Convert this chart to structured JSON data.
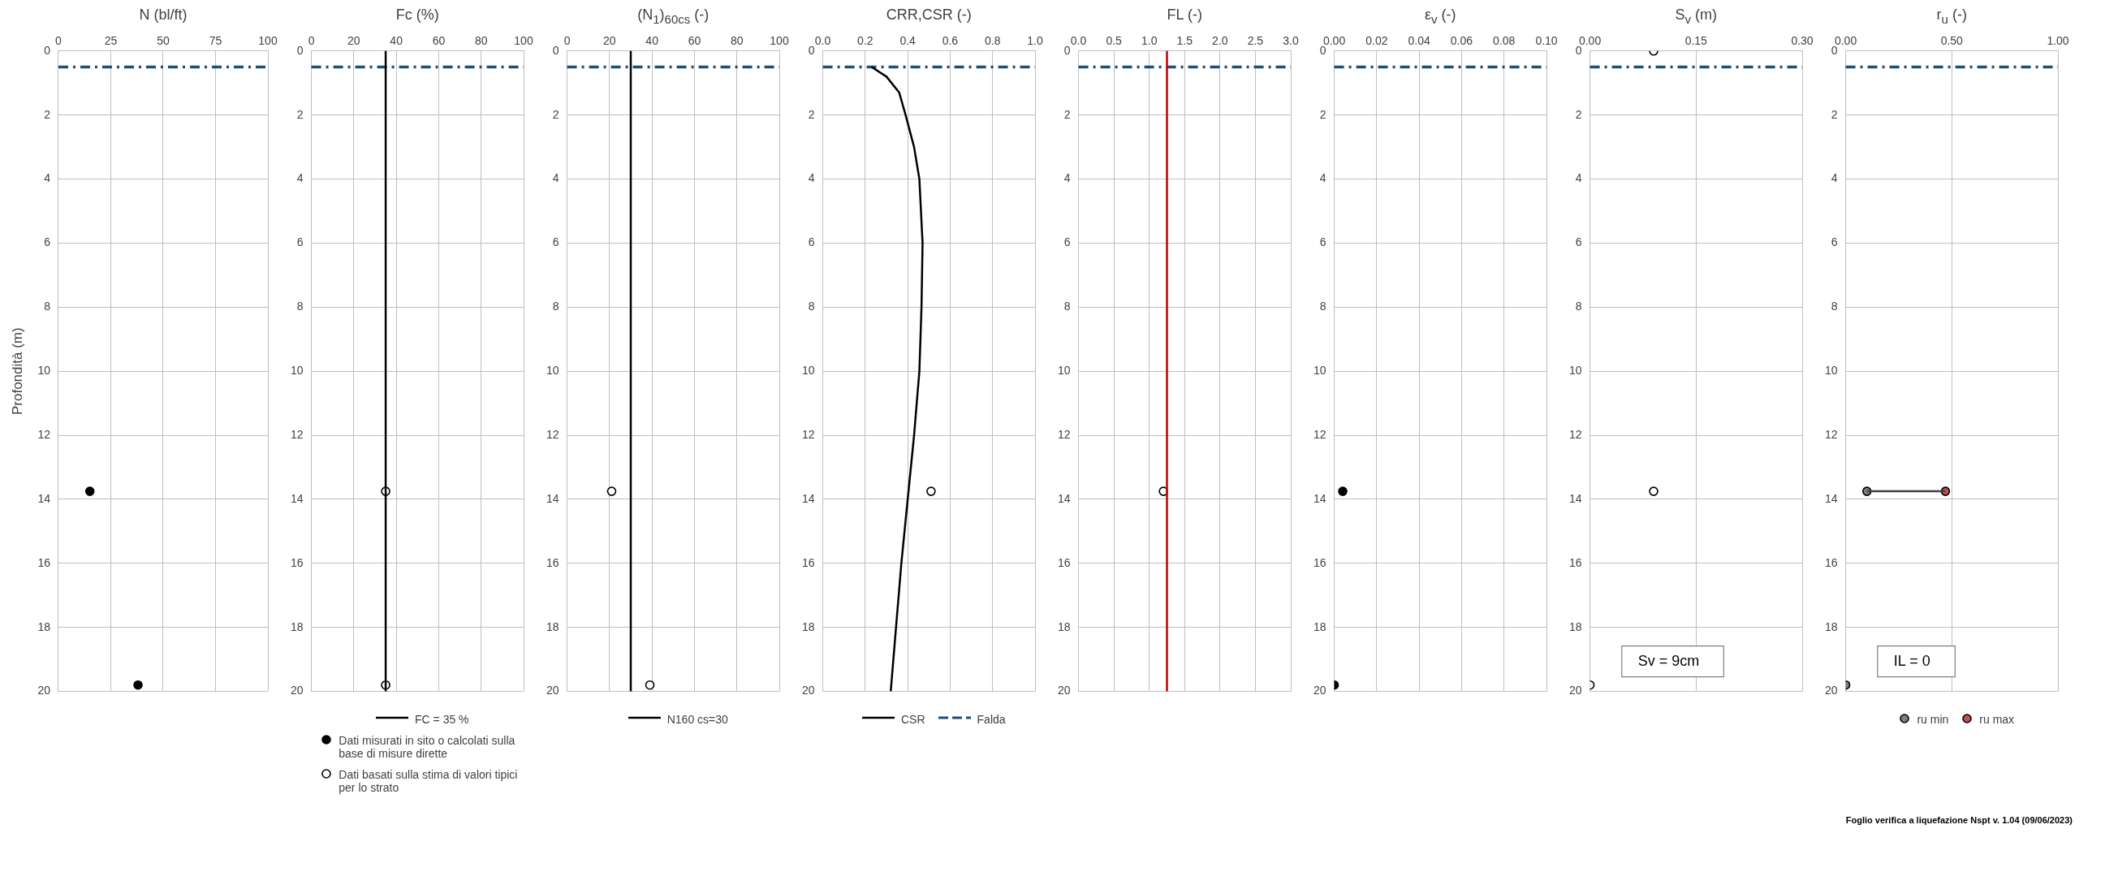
{
  "chart_data": [
    {
      "type": "scatter",
      "xlabel": "N (bl/ft)",
      "ylabel": "Profondità (m)",
      "xlim": [
        0,
        100
      ],
      "xticks": [
        0,
        25,
        50,
        75,
        100
      ],
      "ylim": [
        20,
        0
      ],
      "yticks": [
        0,
        2,
        4,
        6,
        8,
        10,
        12,
        14,
        16,
        18,
        20
      ],
      "grid": true,
      "marker": "circle",
      "series": [
        {
          "color": "#000000",
          "x": [
            15,
            38
          ],
          "values": [
            13.75,
            19.8
          ]
        }
      ],
      "ref_lines": [
        {
          "axis": "y",
          "value": 0.5,
          "color": "#1f4e79",
          "line_style": "dashed"
        }
      ]
    },
    {
      "type": "scatter",
      "xlabel": "Fc (%)",
      "xlim": [
        0,
        100
      ],
      "xticks": [
        0,
        20,
        40,
        60,
        80,
        100
      ],
      "ylim": [
        20,
        0
      ],
      "yticks": [
        0,
        2,
        4,
        6,
        8,
        10,
        12,
        14,
        16,
        18,
        20
      ],
      "grid": true,
      "marker": "circle",
      "legend": "bottom",
      "series": [
        {
          "type": "line",
          "name": "FC = 35 %",
          "color": "#000000",
          "marker": "none",
          "x": [
            35,
            35
          ],
          "values": [
            0,
            20
          ]
        },
        {
          "name": "Dati misurati in sito o calcolati sulla base di misure dirette",
          "color": "#000000"
        },
        {
          "name": "Dati basati sulla stima di valori tipici per lo strato",
          "color": "#ffffff",
          "x": [
            35,
            35
          ],
          "values": [
            13.75,
            19.8
          ]
        }
      ],
      "ref_lines": [
        {
          "axis": "y",
          "value": 0.5,
          "color": "#1f4e79",
          "line_style": "dashed"
        }
      ]
    },
    {
      "type": "scatter",
      "xlabel": "(N$_{1}$)$_{60cs}$ (-)",
      "xlim": [
        0,
        100
      ],
      "xticks": [
        0,
        20,
        40,
        60,
        80,
        100
      ],
      "ylim": [
        20,
        0
      ],
      "yticks": [
        0,
        2,
        4,
        6,
        8,
        10,
        12,
        14,
        16,
        18,
        20
      ],
      "grid": true,
      "marker": "circle",
      "legend": "bottom",
      "series": [
        {
          "type": "line",
          "name": "N160 cs=30",
          "color": "#000000",
          "marker": "none",
          "x": [
            30,
            30
          ],
          "values": [
            0,
            20
          ]
        },
        {
          "color": "#ffffff",
          "x": [
            21,
            39
          ],
          "values": [
            13.75,
            19.8
          ]
        }
      ],
      "ref_lines": [
        {
          "axis": "y",
          "value": 0.5,
          "color": "#1f4e79",
          "line_style": "dashed"
        }
      ]
    },
    {
      "type": "scatter",
      "xlabel": "CRR,CSR (-)",
      "xlim": [
        0,
        1
      ],
      "xticks": [
        {
          "value": 0,
          "label": "0.0"
        },
        0.2,
        0.4,
        0.6,
        0.8,
        {
          "value": 1,
          "label": "1.0"
        }
      ],
      "ylim": [
        20,
        0
      ],
      "yticks": [
        0,
        2,
        4,
        6,
        8,
        10,
        12,
        14,
        16,
        18,
        20
      ],
      "grid": true,
      "marker": "circle",
      "legend": "bottom",
      "series": [
        {
          "type": "line",
          "name": "CSR",
          "color": "#000000",
          "marker": "none",
          "x": [
            0.23,
            0.3,
            0.36,
            0.39,
            0.43,
            0.455,
            0.47,
            0.465,
            0.455,
            0.43,
            0.4,
            0.37,
            0.345,
            0.32
          ],
          "values": [
            0.5,
            0.8,
            1.3,
            2,
            3,
            4,
            6,
            8,
            10,
            12,
            14,
            16,
            18,
            20
          ]
        },
        {
          "color": "#ffffff",
          "x": [
            0.51
          ],
          "values": [
            13.75
          ]
        }
      ],
      "ref_lines": [
        {
          "axis": "y",
          "value": 0.5,
          "color": "#1f4e79",
          "line_style": "dashed",
          "label": "Falda"
        }
      ]
    },
    {
      "type": "scatter",
      "xlabel": "FL (-)",
      "xlim": [
        0,
        3
      ],
      "xticks": [
        {
          "value": 0,
          "label": "0.0"
        },
        0.5,
        {
          "value": 1,
          "label": "1.0"
        },
        1.5,
        {
          "value": 2,
          "label": "2.0"
        },
        2.5,
        {
          "value": 3,
          "label": "3.0"
        }
      ],
      "ylim": [
        20,
        0
      ],
      "yticks": [
        0,
        2,
        4,
        6,
        8,
        10,
        12,
        14,
        16,
        18,
        20
      ],
      "grid": true,
      "marker": "circle",
      "series": [
        {
          "type": "line",
          "color": "#c00000",
          "marker": "none",
          "x": [
            1.25,
            1.25
          ],
          "values": [
            0,
            20
          ]
        },
        {
          "color": "#ffffff",
          "x": [
            1.2
          ],
          "values": [
            13.75
          ]
        }
      ],
      "ref_lines": [
        {
          "axis": "y",
          "value": 0.5,
          "color": "#1f4e79",
          "line_style": "dashed"
        }
      ]
    },
    {
      "type": "scatter",
      "xlabel": "ε$_{v}$ (-)",
      "xlim": [
        0,
        0.1
      ],
      "xticks": [
        {
          "value": 0,
          "label": "0.00"
        },
        {
          "value": 0.02,
          "label": "0.02"
        },
        {
          "value": 0.04,
          "label": "0.04"
        },
        {
          "value": 0.06,
          "label": "0.06"
        },
        {
          "value": 0.08,
          "label": "0.08"
        },
        {
          "value": 0.1,
          "label": "0.10"
        }
      ],
      "ylim": [
        20,
        0
      ],
      "yticks": [
        0,
        2,
        4,
        6,
        8,
        10,
        12,
        14,
        16,
        18,
        20
      ],
      "grid": true,
      "marker": "circle",
      "series": [
        {
          "color": "#000000",
          "x": [
            0.004,
            0
          ],
          "values": [
            13.75,
            19.8
          ]
        }
      ],
      "ref_lines": [
        {
          "axis": "y",
          "value": 0.5,
          "color": "#1f4e79",
          "line_style": "dashed"
        }
      ]
    },
    {
      "type": "scatter",
      "xlabel": "S$_{v}$ (m)",
      "xlim": [
        0,
        0.3
      ],
      "xticks": [
        {
          "value": 0,
          "label": "0.00"
        },
        0.15,
        {
          "value": 0.3,
          "label": "0.30"
        }
      ],
      "ylim": [
        20,
        0
      ],
      "yticks": [
        0,
        2,
        4,
        6,
        8,
        10,
        12,
        14,
        16,
        18,
        20
      ],
      "grid": true,
      "marker": "circle",
      "series": [
        {
          "color": "#ffffff",
          "x": [
            0.09,
            0.09,
            0
          ],
          "values": [
            0,
            13.75,
            19.8
          ]
        }
      ],
      "ref_lines": [
        {
          "axis": "y",
          "value": 0.5,
          "color": "#1f4e79",
          "line_style": "dashed"
        }
      ],
      "annotations": [
        "Sv = 9cm"
      ]
    },
    {
      "type": "scatter",
      "xlabel": "r$_{u}$ (-)",
      "xlim": [
        0,
        1
      ],
      "xticks": [
        {
          "value": 0,
          "label": "0.00"
        },
        {
          "value": 0.5,
          "label": "0.50"
        },
        {
          "value": 1,
          "label": "1.00"
        }
      ],
      "ylim": [
        20,
        0
      ],
      "yticks": [
        0,
        2,
        4,
        6,
        8,
        10,
        12,
        14,
        16,
        18,
        20
      ],
      "grid": true,
      "marker": "circle",
      "legend": "bottom",
      "series": [
        {
          "type": "line",
          "color": "#404040",
          "marker": "none",
          "x": [
            0.1,
            0.47
          ],
          "values": [
            13.75,
            13.75
          ]
        },
        {
          "name": "ru min",
          "color": "#7f7f7f",
          "x": [
            0.1,
            0
          ],
          "values": [
            13.75,
            19.8
          ]
        },
        {
          "name": "ru max",
          "color": "#c0504d",
          "x": [
            0.47
          ],
          "values": [
            13.75
          ]
        }
      ],
      "ref_lines": [
        {
          "axis": "y",
          "value": 0.5,
          "color": "#1f4e79",
          "line_style": "dashed"
        }
      ],
      "annotations": [
        "IL = 0",
        "Foglio verifica a liquefazione Nspt v. 1.04 (09/06/2023)"
      ]
    }
  ]
}
